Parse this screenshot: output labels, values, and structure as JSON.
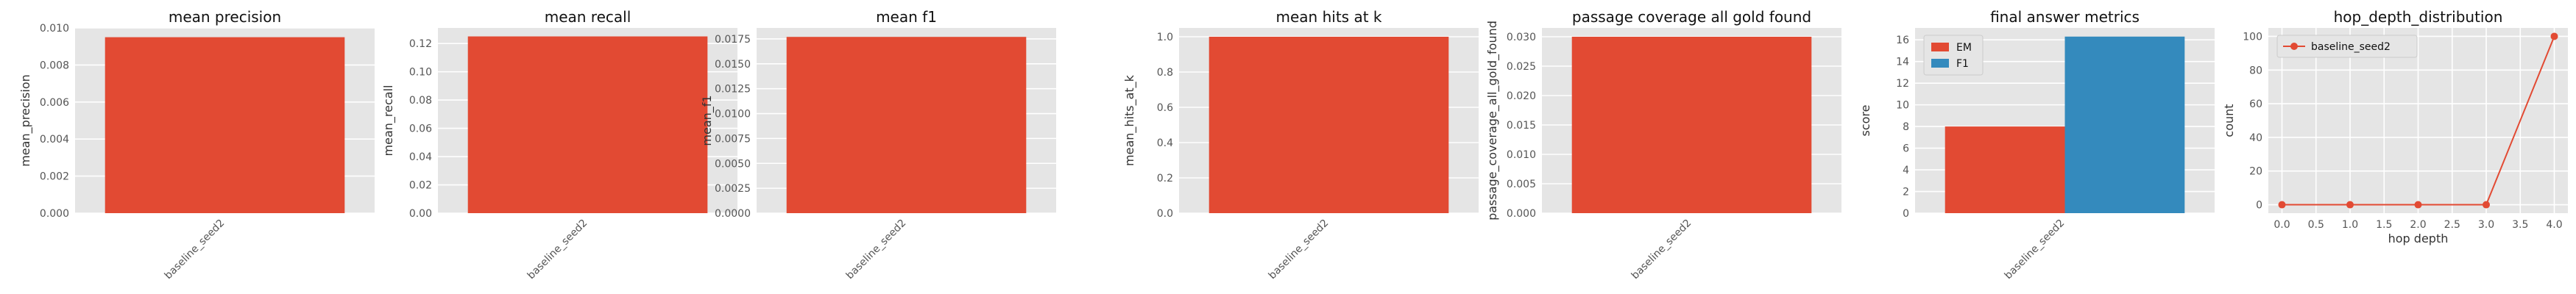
{
  "colors": {
    "panel_bg": "#E5E5E5",
    "grid": "#FFFFFF",
    "tick_text": "#555555",
    "label_text": "#333333",
    "title_text": "#111111",
    "red": "#E24A33",
    "blue": "#348ABD"
  },
  "chart_data": [
    {
      "type": "bar",
      "title": "mean precision",
      "xlabel": "",
      "ylabel": "mean_precision",
      "categories": [
        "baseline_seed2"
      ],
      "values": [
        0.0095
      ],
      "ylim": [
        0,
        0.01
      ],
      "yticks": [
        "0.000",
        "0.002",
        "0.004",
        "0.006",
        "0.008",
        "0.010"
      ],
      "grid": true
    },
    {
      "type": "bar",
      "title": "mean recall",
      "xlabel": "",
      "ylabel": "mean_recall",
      "categories": [
        "baseline_seed2"
      ],
      "values": [
        0.125
      ],
      "ylim": [
        0,
        0.131
      ],
      "yticks": [
        "0.00",
        "0.02",
        "0.04",
        "0.06",
        "0.08",
        "0.10",
        "0.12"
      ],
      "grid": true
    },
    {
      "type": "bar",
      "title": "mean f1",
      "xlabel": "",
      "ylabel": "mean_f1",
      "categories": [
        "baseline_seed2"
      ],
      "values": [
        0.0177
      ],
      "ylim": [
        0,
        0.0186
      ],
      "yticks": [
        "0.0000",
        "0.0025",
        "0.0050",
        "0.0075",
        "0.0100",
        "0.0125",
        "0.0150",
        "0.0175"
      ],
      "grid": true
    },
    {
      "type": "bar",
      "title": "mean hits at k",
      "xlabel": "",
      "ylabel": "mean_hits_at_k",
      "categories": [
        "baseline_seed2"
      ],
      "values": [
        1.0
      ],
      "ylim": [
        0,
        1.05
      ],
      "yticks": [
        "0.0",
        "0.2",
        "0.4",
        "0.6",
        "0.8",
        "1.0"
      ],
      "grid": true
    },
    {
      "type": "bar",
      "title": "passage coverage all gold found",
      "xlabel": "",
      "ylabel": "passage_coverage_all_gold_found",
      "categories": [
        "baseline_seed2"
      ],
      "values": [
        0.03
      ],
      "ylim": [
        0,
        0.0315
      ],
      "yticks": [
        "0.000",
        "0.005",
        "0.010",
        "0.015",
        "0.020",
        "0.025",
        "0.030"
      ],
      "grid": true
    },
    {
      "type": "bar",
      "title": "final answer metrics",
      "xlabel": "",
      "ylabel": "score",
      "categories": [
        "baseline_seed2"
      ],
      "series": [
        {
          "name": "EM",
          "values": [
            8.0
          ]
        },
        {
          "name": "F1",
          "values": [
            16.3
          ]
        }
      ],
      "ylim": [
        0,
        17.1
      ],
      "yticks": [
        "0",
        "2",
        "4",
        "6",
        "8",
        "10",
        "12",
        "14",
        "16"
      ],
      "legend": "top-left",
      "grid": true
    },
    {
      "type": "line",
      "title": "hop_depth_distribution",
      "xlabel": "hop depth",
      "ylabel": "count",
      "x": [
        0,
        1,
        2,
        3,
        4
      ],
      "series": [
        {
          "name": "baseline_seed2",
          "values": [
            0,
            0,
            0,
            0,
            100
          ]
        }
      ],
      "xlim": [
        -0.2,
        4.2
      ],
      "ylim": [
        -5,
        105
      ],
      "xticks": [
        "0.0",
        "0.5",
        "1.0",
        "1.5",
        "2.0",
        "2.5",
        "3.0",
        "3.5",
        "4.0"
      ],
      "yticks": [
        "0",
        "20",
        "40",
        "60",
        "80",
        "100"
      ],
      "legend": "top-left",
      "grid": true
    }
  ]
}
